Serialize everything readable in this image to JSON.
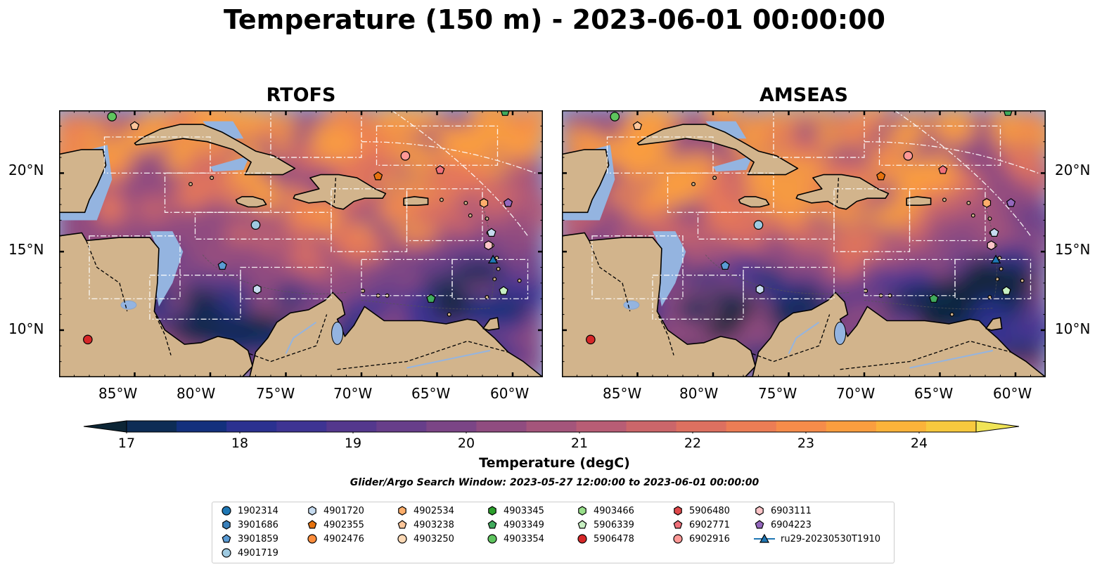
{
  "title": "Temperature (150 m) - 2023-06-01 00:00:00",
  "panels": [
    {
      "name": "RTOFS"
    },
    {
      "name": "AMSEAS"
    }
  ],
  "lat_labels": [
    "20°N",
    "15°N",
    "10°N"
  ],
  "lon_labels": [
    "85°W",
    "80°W",
    "75°W",
    "70°W",
    "65°W",
    "60°W"
  ],
  "extent": {
    "lon": [
      -90.0,
      -58.0
    ],
    "lat": [
      7.0,
      24.0
    ]
  },
  "colorbar": {
    "label": "Temperature (degC)",
    "ticks": [
      "17",
      "18",
      "19",
      "20",
      "21",
      "22",
      "23",
      "24"
    ],
    "range": [
      16.5,
      24.5
    ],
    "step": 0.5,
    "colors": [
      "#0c2535",
      "#0d2c55",
      "#13307d",
      "#2b3190",
      "#3e3493",
      "#54388d",
      "#673e8a",
      "#7b4586",
      "#904c80",
      "#a4557b",
      "#b85d75",
      "#cb666a",
      "#dd7060",
      "#ec7d55",
      "#f68c4a",
      "#fa9e3f",
      "#fbb33a",
      "#f7c93e",
      "#f0e457"
    ]
  },
  "search_window": "Glider/Argo Search Window: 2023-05-27 12:00:00 to 2023-06-01 00:00:00",
  "legend": [
    {
      "id": "1902314",
      "marker": "circle",
      "color": "#1f77b4"
    },
    {
      "id": "3901686",
      "marker": "hexagon",
      "color": "#3a80ba"
    },
    {
      "id": "3901859",
      "marker": "pentagon",
      "color": "#5a9bd4"
    },
    {
      "id": "4901719",
      "marker": "circle",
      "color": "#9ecae1"
    },
    {
      "id": "4901720",
      "marker": "hexagon",
      "color": "#c6dbef"
    },
    {
      "id": "4902355",
      "marker": "pentagon",
      "color": "#e6720e"
    },
    {
      "id": "4902476",
      "marker": "circle",
      "color": "#fd8d3c"
    },
    {
      "id": "4902534",
      "marker": "hexagon",
      "color": "#fdae6b"
    },
    {
      "id": "4903238",
      "marker": "pentagon",
      "color": "#fdc69a"
    },
    {
      "id": "4903250",
      "marker": "circle",
      "color": "#fdd9b5"
    },
    {
      "id": "4903345",
      "marker": "hexagon",
      "color": "#2ca02c"
    },
    {
      "id": "4903349",
      "marker": "pentagon",
      "color": "#41ab5d"
    },
    {
      "id": "4903354",
      "marker": "circle",
      "color": "#5ec45e"
    },
    {
      "id": "4903466",
      "marker": "hexagon",
      "color": "#98df8a"
    },
    {
      "id": "5906339",
      "marker": "pentagon",
      "color": "#c7f0c2"
    },
    {
      "id": "5906478",
      "marker": "circle",
      "color": "#d62728"
    },
    {
      "id": "5906480",
      "marker": "hexagon",
      "color": "#e0484a"
    },
    {
      "id": "6902771",
      "marker": "pentagon",
      "color": "#f0707a"
    },
    {
      "id": "6902916",
      "marker": "circle",
      "color": "#ff9896"
    },
    {
      "id": "6903111",
      "marker": "hexagon",
      "color": "#fcc5c8"
    },
    {
      "id": "6904223",
      "marker": "pentagon",
      "color": "#9467bd"
    },
    {
      "id": "ru29-20230530T1910",
      "marker": "triangle-line",
      "color": "#1f77b4"
    }
  ],
  "floats": [
    {
      "lon": -86.5,
      "lat": 23.6,
      "marker": "circle",
      "color": "#5ec45e"
    },
    {
      "lon": -85.0,
      "lat": 23.0,
      "marker": "pentagon",
      "color": "#fdc69a"
    },
    {
      "lon": -60.5,
      "lat": 23.9,
      "marker": "pentagon",
      "color": "#41ab5d"
    },
    {
      "lon": -67.1,
      "lat": 21.1,
      "marker": "circle",
      "color": "#ff9896"
    },
    {
      "lon": -64.8,
      "lat": 20.2,
      "marker": "pentagon",
      "color": "#f0707a"
    },
    {
      "lon": -68.9,
      "lat": 19.8,
      "marker": "pentagon",
      "color": "#e6720e"
    },
    {
      "lon": -61.9,
      "lat": 18.1,
      "marker": "hexagon",
      "color": "#fdae6b"
    },
    {
      "lon": -60.3,
      "lat": 18.1,
      "marker": "pentagon",
      "color": "#9467bd"
    },
    {
      "lon": -77.0,
      "lat": 16.7,
      "marker": "circle",
      "color": "#9ecae1"
    },
    {
      "lon": -61.4,
      "lat": 16.2,
      "marker": "pentagon",
      "color": "#c6dbef"
    },
    {
      "lon": -61.6,
      "lat": 15.4,
      "marker": "hexagon",
      "color": "#fcc5c8"
    },
    {
      "lon": -61.3,
      "lat": 14.5,
      "marker": "triangle",
      "color": "#1f77b4"
    },
    {
      "lon": -79.2,
      "lat": 14.1,
      "marker": "pentagon",
      "color": "#5a9bd4"
    },
    {
      "lon": -76.9,
      "lat": 12.6,
      "marker": "hexagon",
      "color": "#c6dbef"
    },
    {
      "lon": -60.6,
      "lat": 12.5,
      "marker": "pentagon",
      "color": "#c7f0c2"
    },
    {
      "lon": -65.4,
      "lat": 12.0,
      "marker": "pentagon",
      "color": "#41ab5d"
    },
    {
      "lon": -88.1,
      "lat": 9.4,
      "marker": "circle",
      "color": "#d62728"
    }
  ]
}
